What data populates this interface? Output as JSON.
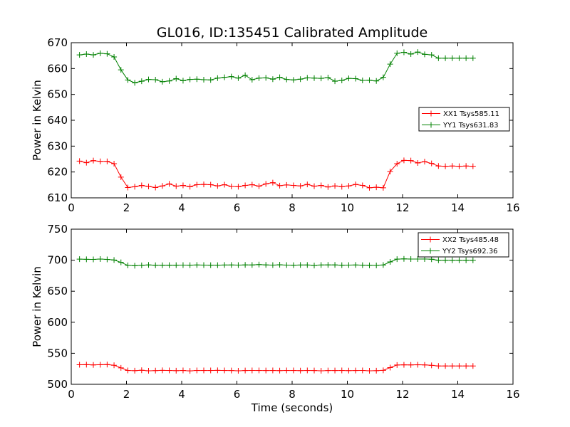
{
  "chart_data": [
    {
      "type": "line",
      "title": "GL016, ID:135451 Calibrated Amplitude",
      "xlabel": "",
      "ylabel": "Power in Kelvin",
      "xlim": [
        0,
        16
      ],
      "ylim": [
        610,
        670
      ],
      "x_ticks": [
        0,
        2,
        4,
        6,
        8,
        10,
        12,
        14,
        16
      ],
      "y_ticks": [
        610,
        620,
        630,
        640,
        650,
        660,
        670
      ],
      "legend_position": "center-right",
      "x": [
        0.3,
        0.55,
        0.8,
        1.05,
        1.3,
        1.55,
        1.8,
        2.05,
        2.3,
        2.55,
        2.8,
        3.05,
        3.3,
        3.55,
        3.8,
        4.05,
        4.3,
        4.55,
        4.8,
        5.05,
        5.3,
        5.55,
        5.8,
        6.05,
        6.3,
        6.55,
        6.8,
        7.05,
        7.3,
        7.55,
        7.8,
        8.05,
        8.3,
        8.55,
        8.8,
        9.05,
        9.3,
        9.55,
        9.8,
        10.05,
        10.3,
        10.55,
        10.8,
        11.05,
        11.3,
        11.55,
        11.8,
        12.05,
        12.3,
        12.55,
        12.8,
        13.05,
        13.3,
        13.55,
        13.8,
        14.05,
        14.3,
        14.55
      ],
      "series": [
        {
          "name": "XX1 Tsys585.11",
          "color": "#ff0000",
          "values": [
            624.2,
            623.6,
            624.4,
            624.1,
            624.1,
            623.2,
            618.0,
            614.0,
            614.3,
            614.8,
            614.4,
            614.0,
            614.6,
            615.4,
            614.5,
            614.8,
            614.3,
            615.1,
            615.2,
            615.1,
            614.6,
            615.1,
            614.4,
            614.3,
            614.8,
            615.1,
            614.5,
            615.4,
            615.9,
            614.7,
            615.0,
            614.8,
            614.6,
            615.2,
            614.5,
            614.8,
            614.2,
            614.6,
            614.3,
            614.6,
            615.2,
            614.8,
            613.9,
            614.1,
            613.9,
            620.2,
            623.2,
            624.5,
            624.4,
            623.5,
            624.0,
            623.3,
            622.3,
            622.2,
            622.3,
            622.2,
            622.3,
            622.2
          ]
        },
        {
          "name": "YY1 Tsys631.83",
          "color": "#008000",
          "values": [
            665.3,
            665.6,
            665.3,
            665.9,
            665.7,
            664.5,
            659.5,
            655.6,
            654.5,
            655.1,
            655.8,
            655.7,
            654.9,
            655.2,
            656.1,
            655.3,
            655.8,
            655.9,
            655.7,
            655.6,
            656.3,
            656.6,
            656.9,
            656.3,
            657.4,
            655.7,
            656.3,
            656.4,
            655.9,
            656.6,
            655.8,
            655.6,
            655.9,
            656.4,
            656.3,
            656.2,
            656.5,
            655.1,
            655.4,
            656.2,
            656.1,
            655.4,
            655.5,
            655.2,
            656.6,
            661.7,
            665.9,
            666.3,
            665.6,
            666.4,
            665.5,
            665.3,
            664.0,
            664.0,
            664.0,
            664.0,
            664.0,
            664.0
          ]
        }
      ]
    },
    {
      "type": "line",
      "title": "",
      "xlabel": "Time (seconds)",
      "ylabel": "Power in Kelvin",
      "xlim": [
        0,
        16
      ],
      "ylim": [
        500,
        750
      ],
      "x_ticks": [
        0,
        2,
        4,
        6,
        8,
        10,
        12,
        14,
        16
      ],
      "y_ticks": [
        500,
        550,
        600,
        650,
        700,
        750
      ],
      "legend_position": "top-right",
      "x": [
        0.3,
        0.55,
        0.8,
        1.05,
        1.3,
        1.55,
        1.8,
        2.05,
        2.3,
        2.55,
        2.8,
        3.05,
        3.3,
        3.55,
        3.8,
        4.05,
        4.3,
        4.55,
        4.8,
        5.05,
        5.3,
        5.55,
        5.8,
        6.05,
        6.3,
        6.55,
        6.8,
        7.05,
        7.3,
        7.55,
        7.8,
        8.05,
        8.3,
        8.55,
        8.8,
        9.05,
        9.3,
        9.55,
        9.8,
        10.05,
        10.3,
        10.55,
        10.8,
        11.05,
        11.3,
        11.55,
        11.8,
        12.05,
        12.3,
        12.55,
        12.8,
        13.05,
        13.3,
        13.55,
        13.8,
        14.05,
        14.3,
        14.55
      ],
      "series": [
        {
          "name": "XX2 Tsys485.48",
          "color": "#ff0000",
          "values": [
            531.5,
            531.7,
            531.2,
            531.6,
            531.8,
            530.7,
            526.5,
            522.3,
            522.0,
            522.6,
            521.8,
            522.1,
            522.5,
            522.3,
            522.0,
            522.3,
            521.7,
            522.4,
            522.3,
            522.3,
            522.5,
            522.3,
            522.2,
            521.8,
            522.2,
            522.4,
            522.3,
            522.2,
            522.3,
            522.1,
            522.4,
            522.3,
            522.1,
            522.4,
            522.2,
            521.8,
            522.2,
            522.2,
            522.3,
            522.1,
            522.2,
            522.4,
            521.8,
            522.0,
            522.5,
            527.0,
            531.1,
            531.4,
            531.2,
            531.5,
            531.2,
            530.6,
            529.6,
            529.6,
            529.6,
            529.6,
            529.6,
            529.6
          ]
        },
        {
          "name": "YY2 Tsys692.36",
          "color": "#008000",
          "values": [
            701.7,
            701.4,
            701.3,
            701.8,
            701.3,
            700.3,
            696.5,
            691.6,
            691.1,
            691.6,
            692.4,
            691.8,
            691.8,
            692.0,
            691.9,
            692.1,
            692.0,
            692.3,
            692.1,
            692.0,
            692.0,
            692.2,
            692.3,
            692.1,
            692.4,
            692.3,
            692.9,
            692.4,
            692.1,
            692.6,
            692.1,
            691.9,
            692.2,
            692.3,
            691.4,
            692.3,
            692.4,
            692.4,
            691.9,
            692.1,
            692.3,
            692.0,
            691.7,
            691.5,
            692.3,
            697.3,
            701.7,
            702.1,
            701.8,
            701.8,
            701.9,
            701.5,
            699.8,
            699.8,
            699.8,
            699.8,
            699.8,
            699.8
          ]
        }
      ]
    }
  ]
}
